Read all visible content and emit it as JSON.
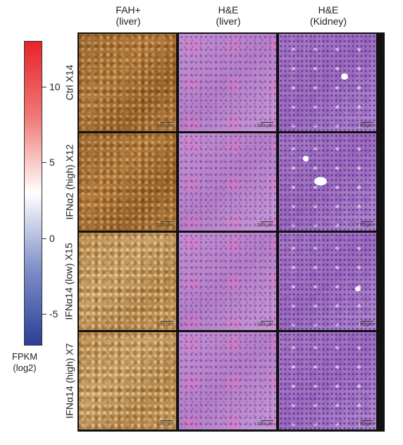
{
  "columns": [
    {
      "line1": "FAH+",
      "line2": "(liver)"
    },
    {
      "line1": "H&E",
      "line2": "(liver)"
    },
    {
      "line1": "H&E",
      "line2": "(Kidney)"
    }
  ],
  "rows": [
    {
      "label": "Ctrl X14"
    },
    {
      "label": "IFNα2 (high) X12"
    },
    {
      "label": "IFNα14 (low) X15"
    },
    {
      "label": "IFNα14 (high) X7"
    }
  ],
  "scale_bar": "100 μm",
  "colorbar": {
    "title_line1": "FPKM",
    "title_line2": "(log2)",
    "ticks": [
      "10",
      "5",
      "0",
      "-5"
    ],
    "min": -7,
    "max": 13,
    "colors": {
      "high": "#e8232a",
      "mid": "#ffffff",
      "low": "#2a3f96"
    }
  },
  "colors": {
    "fah_stain": "#a26a2e",
    "he_stain": "#c390d2",
    "kidney_stain": "#a87cc6"
  }
}
